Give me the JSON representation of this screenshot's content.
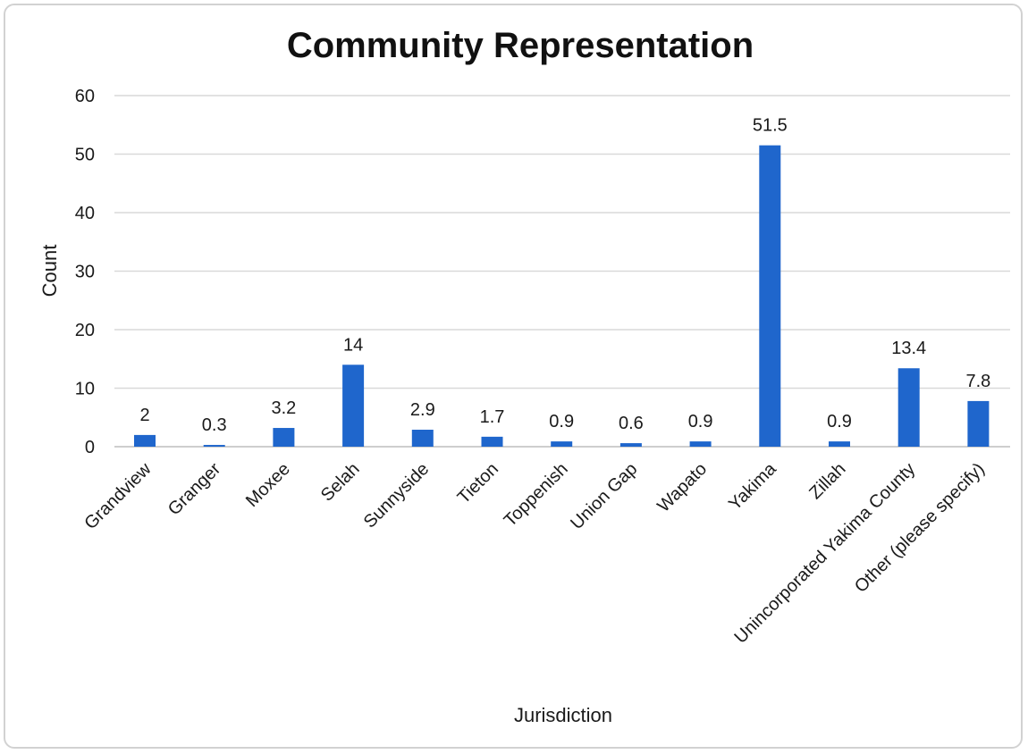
{
  "chart_data": {
    "type": "bar",
    "title": "Community Representation",
    "xlabel": "Jurisdiction",
    "ylabel": "Count",
    "ylim": [
      0,
      60
    ],
    "yticks": [
      0,
      10,
      20,
      30,
      40,
      50,
      60
    ],
    "grid": true,
    "legend": "none",
    "bar_color": "#1f66cc",
    "categories": [
      "Grandview",
      "Granger",
      "Moxee",
      "Selah",
      "Sunnyside",
      "Tieton",
      "Toppenish",
      "Union Gap",
      "Wapato",
      "Yakima",
      "Zillah",
      "Unincorporated Yakima County",
      "Other (please specify)"
    ],
    "values": [
      2,
      0.3,
      3.2,
      14,
      2.9,
      1.7,
      0.9,
      0.6,
      0.9,
      51.5,
      0.9,
      13.4,
      7.8
    ],
    "data_labels": [
      "2",
      "0.3",
      "3.2",
      "14",
      "2.9",
      "1.7",
      "0.9",
      "0.6",
      "0.9",
      "51.5",
      "0.9",
      "13.4",
      "7.8"
    ]
  }
}
